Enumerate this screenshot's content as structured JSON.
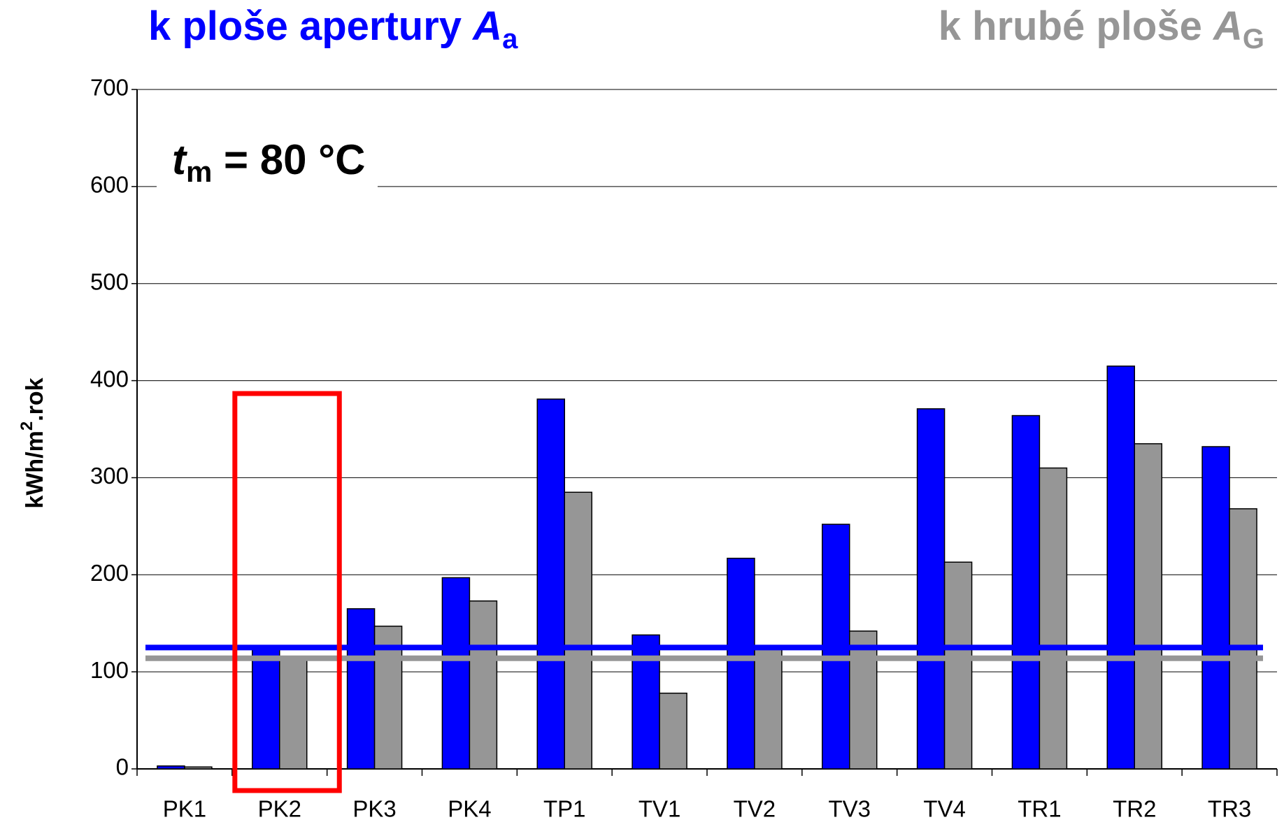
{
  "chart_data": {
    "type": "bar",
    "title_left": {
      "text": "k ploše apertury ",
      "symbol": "A",
      "sub": "a"
    },
    "title_right": {
      "text": "k hrubé ploše ",
      "symbol": "A",
      "sub": "G"
    },
    "annotation": {
      "symbol": "t",
      "sub": "m",
      "text": " = 80 °C"
    },
    "y_label": {
      "text": "kWh/m",
      "sup": "2",
      "rest": ".rok"
    },
    "categories": [
      "PK1",
      "PK2",
      "PK3",
      "PK4",
      "TP1",
      "TV1",
      "TV2",
      "TV3",
      "TV4",
      "TR1",
      "TR2",
      "TR3"
    ],
    "series": [
      {
        "color": "#0000ff",
        "values": [
          3,
          125,
          165,
          197,
          381,
          138,
          217,
          252,
          371,
          364,
          415,
          332
        ]
      },
      {
        "color": "#969696",
        "values": [
          2,
          115,
          147,
          173,
          285,
          78,
          125,
          142,
          213,
          310,
          335,
          268
        ]
      }
    ],
    "reference_lines": [
      {
        "value": 125,
        "color": "#0000ff"
      },
      {
        "value": 114,
        "color": "#969696"
      }
    ],
    "ylim": [
      0,
      700
    ],
    "yticks": [
      0,
      100,
      200,
      300,
      400,
      500,
      600,
      700
    ],
    "grid": true
  }
}
